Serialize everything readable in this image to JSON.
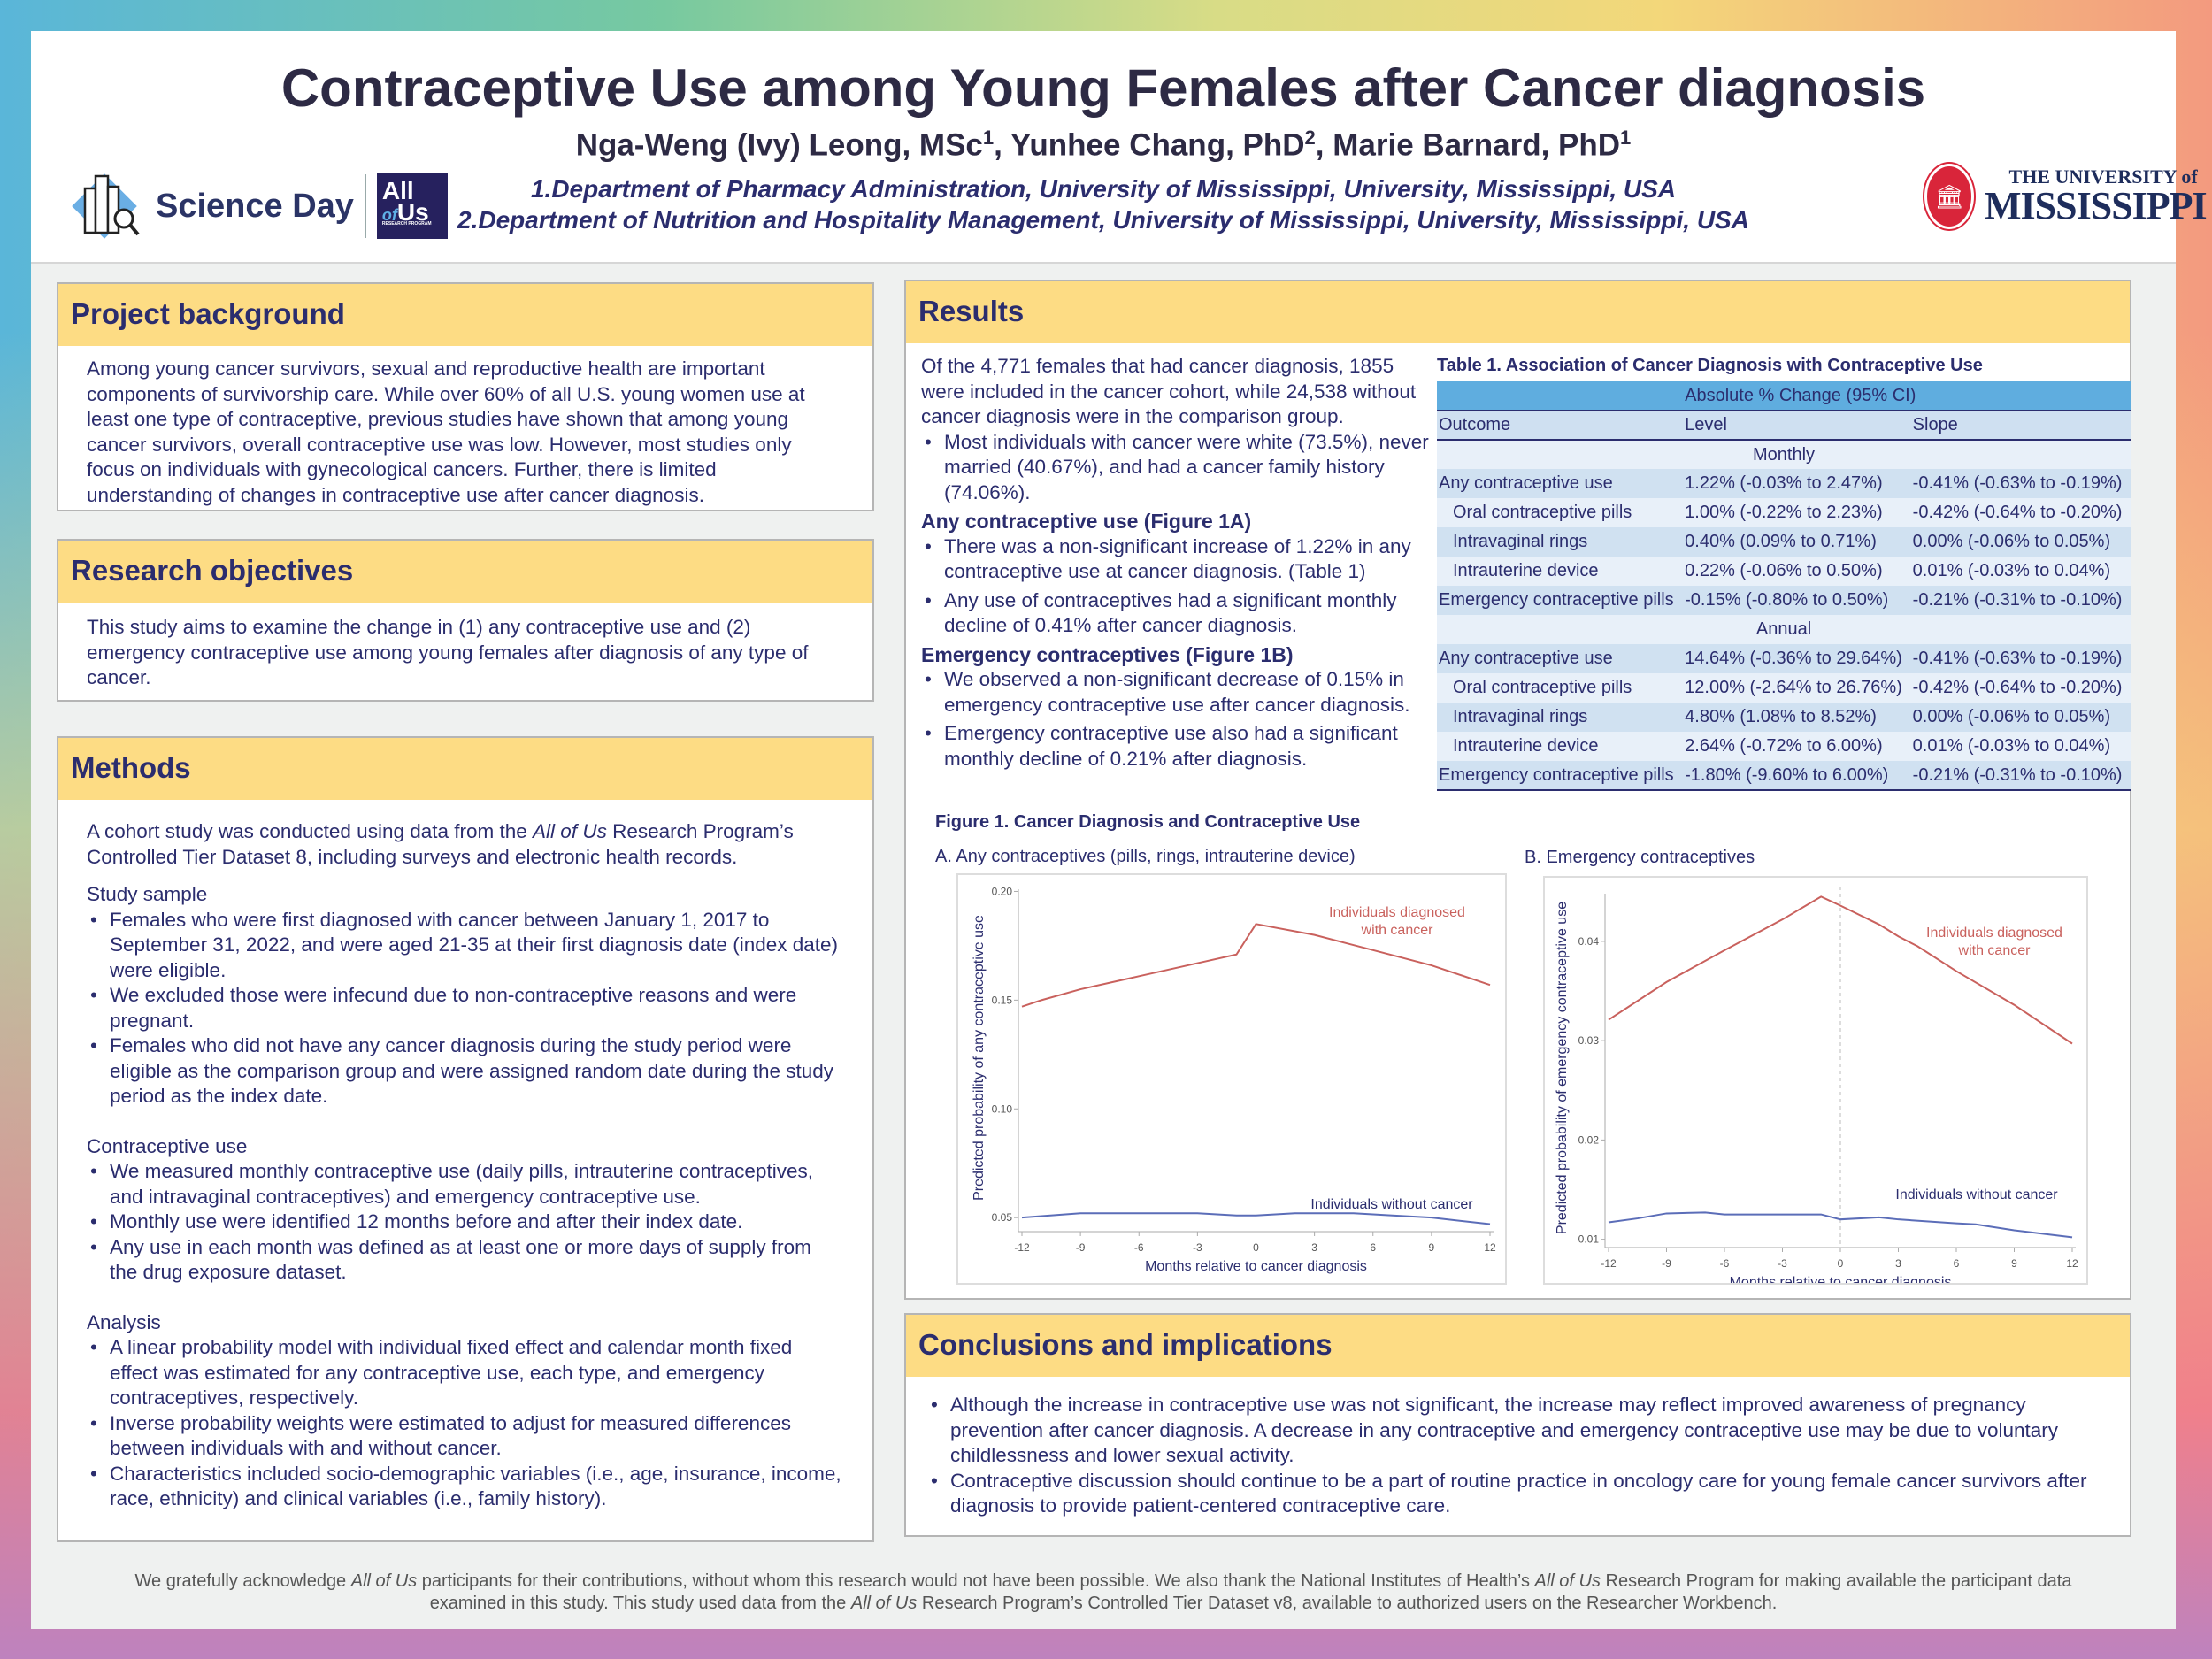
{
  "header": {
    "title": "Contraceptive Use among Young Females after Cancer diagnosis",
    "authors": [
      {
        "name": "Nga-Weng (Ivy) Leong, MSc",
        "sup": "1"
      },
      {
        "name": "Yunhee Chang, PhD",
        "sup": "2"
      },
      {
        "name": "Marie Barnard, PhD",
        "sup": "1"
      }
    ],
    "affiliations": [
      "1.Department of Pharmacy Administration, University of Mississippi, University, Mississippi, USA",
      "2.Department of Nutrition and Hospitality Management, University of Mississippi, University, Mississippi, USA"
    ],
    "logo_left": "Science Day",
    "logo_allofus": {
      "line1": "All",
      "line2a": "of",
      "line2b": "Us",
      "line3": "RESEARCH PROGRAM"
    },
    "logo_right": {
      "line1": "THE UNIVERSITY of",
      "line2": "MISSISSIPPI",
      "seal_year": "1848"
    }
  },
  "background": {
    "title": "Project background",
    "text": "Among young cancer survivors, sexual and reproductive health are important components of survivorship care. While over 60% of all U.S. young women use at least one type of contraceptive, previous studies have shown that among young cancer survivors, overall contraceptive use was low. However, most studies only focus on individuals with gynecological cancers. Further, there is limited understanding of changes in contraceptive use after cancer diagnosis."
  },
  "objectives": {
    "title": "Research objectives",
    "text": "This study aims to examine the change in (1) any contraceptive use and (2) emergency contraceptive use among young females after diagnosis of any type of cancer."
  },
  "methods": {
    "title": "Methods",
    "intro_pre": "A cohort study was conducted using data from the ",
    "intro_em": "All of Us",
    "intro_post": " Research Program’s Controlled Tier Dataset 8, including surveys and electronic health records.",
    "sections": [
      {
        "heading": "Study sample",
        "bullets": [
          "Females who were first diagnosed with cancer between January 1, 2017 to September 31, 2022, and were aged 21-35 at their first diagnosis date (index date) were eligible.",
          "We excluded those were infecund due to non-contraceptive reasons and were pregnant.",
          "Females who did not have any cancer diagnosis during the study period were eligible as the comparison group and were assigned random date during the study period as the index date."
        ]
      },
      {
        "heading": "Contraceptive use",
        "bullets": [
          "We measured monthly contraceptive use (daily pills, intrauterine contraceptives, and intravaginal contraceptives) and emergency contraceptive use.",
          "Monthly use were identified 12 months before and after their index date.",
          "Any use in each month was defined as at least one or more days of supply from the drug exposure dataset."
        ]
      },
      {
        "heading": "Analysis",
        "bullets": [
          "A linear probability model with individual fixed effect and calendar month fixed effect was estimated for any contraceptive use, each type, and emergency contraceptives, respectively.",
          "Inverse probability weights were estimated to adjust for measured differences between individuals with and without cancer.",
          "Characteristics included socio-demographic variables (i.e., age, insurance, income, race, ethnicity) and clinical variables (i.e., family history)."
        ]
      }
    ]
  },
  "results": {
    "title": "Results",
    "intro": "Of the 4,771 females that had cancer diagnosis, 1855 were included in the cancer cohort, while 24,538 without cancer diagnosis were in the comparison group.",
    "intro_bullet": "Most individuals with cancer were white (73.5%), never married (40.67%), and had a cancer family history (74.06%).",
    "any_heading": "Any contraceptive use (Figure 1A)",
    "any_bullets": [
      "There was a non-significant increase of 1.22% in any contraceptive use at cancer diagnosis. (Table 1)",
      "Any use of contraceptives had a significant monthly decline of 0.41% after cancer diagnosis."
    ],
    "ec_heading": "Emergency contraceptives (Figure 1B)",
    "ec_bullets": [
      "We observed a non-significant decrease of 0.15% in emergency contraceptive use after cancer diagnosis.",
      "Emergency contraceptive use also had a significant monthly decline of 0.21% after diagnosis."
    ],
    "table": {
      "caption": "Table 1. Association of Cancer Diagnosis with Contraceptive Use",
      "group_header": "Absolute % Change (95% CI)",
      "columns": [
        "Outcome",
        "Level",
        "Slope"
      ],
      "sections": [
        {
          "label": "Monthly",
          "rows": [
            [
              "Any contraceptive use",
              "1.22% (-0.03% to 2.47%)",
              "-0.41% (-0.63% to -0.19%)"
            ],
            [
              "Oral contraceptive pills",
              "1.00% (-0.22% to 2.23%)",
              "-0.42% (-0.64% to -0.20%)"
            ],
            [
              "Intravaginal rings",
              "0.40% (0.09% to 0.71%)",
              "0.00% (-0.06% to 0.05%)"
            ],
            [
              "Intrauterine device",
              "0.22% (-0.06% to 0.50%)",
              "0.01% (-0.03% to 0.04%)"
            ],
            [
              "Emergency contraceptive pills",
              "-0.15% (-0.80% to 0.50%)",
              "-0.21% (-0.31% to -0.10%)"
            ]
          ]
        },
        {
          "label": "Annual",
          "rows": [
            [
              "Any contraceptive use",
              "14.64% (-0.36% to 29.64%)",
              "-0.41% (-0.63% to -0.19%)"
            ],
            [
              "Oral contraceptive pills",
              "12.00% (-2.64% to 26.76%)",
              "-0.42% (-0.64% to -0.20%)"
            ],
            [
              "Intravaginal rings",
              "4.80% (1.08% to 8.52%)",
              "0.00% (-0.06% to 0.05%)"
            ],
            [
              "Intrauterine device",
              "2.64% (-0.72% to 6.00%)",
              "0.01% (-0.03% to 0.04%)"
            ],
            [
              "Emergency contraceptive pills",
              "-1.80% (-9.60% to 6.00%)",
              "-0.21% (-0.31% to -0.10%)"
            ]
          ]
        }
      ]
    },
    "figure_title": "Figure 1. Cancer Diagnosis and Contraceptive Use"
  },
  "chart_data": [
    {
      "type": "line",
      "subtitle": "A. Any contraceptives (pills, rings, intrauterine device)",
      "xlabel": "Months relative to cancer diagnosis",
      "ylabel": "Predicted probability of any contraceptive use",
      "xlim": [
        -12,
        12
      ],
      "ylim": [
        0.046,
        0.201
      ],
      "xticks": [
        -12,
        -9,
        -6,
        -3,
        0,
        3,
        6,
        9,
        12
      ],
      "yticks": [
        "0.05",
        "0.10",
        "0.15",
        "0.20"
      ],
      "reference_line_x": 0,
      "grid": false,
      "series": [
        {
          "name": "Individuals diagnosed with cancer",
          "color": "#c9615d",
          "x": [
            -12,
            -11,
            -9,
            -6,
            -3,
            -1,
            0,
            3,
            6,
            9,
            12
          ],
          "y": [
            0.147,
            0.15,
            0.155,
            0.161,
            0.167,
            0.171,
            0.185,
            0.18,
            0.173,
            0.166,
            0.157
          ]
        },
        {
          "name": "Individuals without cancer",
          "color": "#5b6db8",
          "x": [
            -12,
            -9,
            -7,
            -3,
            -1,
            0,
            2,
            5,
            7,
            9,
            12
          ],
          "y": [
            0.05,
            0.052,
            0.052,
            0.052,
            0.051,
            0.051,
            0.052,
            0.052,
            0.051,
            0.05,
            0.047
          ]
        }
      ]
    },
    {
      "type": "line",
      "subtitle": "B. Emergency contraceptives",
      "xlabel": "Months relative to cancer diagnosis",
      "ylabel": "Predicted probability of emergency contraceptive use",
      "xlim": [
        -12,
        12
      ],
      "ylim": [
        0.0097,
        0.0448
      ],
      "xticks": [
        -12,
        -9,
        -6,
        -3,
        0,
        3,
        6,
        9,
        12
      ],
      "yticks": [
        "0.01",
        "0.02",
        "0.03",
        "0.04"
      ],
      "reference_line_x": 0,
      "grid": false,
      "series": [
        {
          "name": "Individuals diagnosed with cancer",
          "color": "#c9615d",
          "x": [
            -12,
            -9,
            -6,
            -3,
            -1,
            0,
            2,
            3,
            4,
            6,
            9,
            12
          ],
          "y": [
            0.0321,
            0.0359,
            0.0391,
            0.0422,
            0.0445,
            0.0436,
            0.0417,
            0.0405,
            0.0395,
            0.037,
            0.0336,
            0.0297
          ]
        },
        {
          "name": "Individuals without cancer",
          "color": "#5b6db8",
          "x": [
            -12,
            -10.5,
            -9,
            -7,
            -6,
            -3,
            -1,
            0,
            2,
            3,
            6,
            7,
            9,
            12
          ],
          "y": [
            0.0117,
            0.0121,
            0.0126,
            0.0127,
            0.0125,
            0.0125,
            0.0125,
            0.012,
            0.0122,
            0.012,
            0.0116,
            0.0115,
            0.0109,
            0.0102
          ]
        }
      ]
    }
  ],
  "conclusions": {
    "title": "Conclusions and implications",
    "bullets": [
      "Although the increase in contraceptive use was not significant, the increase may reflect improved awareness of pregnancy prevention after cancer diagnosis. A decrease in any contraceptive and emergency contraceptive use may be due to voluntary childlessness and lower sexual activity.",
      "Contraceptive discussion should continue to be a part of routine practice in oncology care for young female cancer survivors after diagnosis to provide patient-centered contraceptive care."
    ]
  },
  "footer": {
    "p1": "We gratefully acknowledge ",
    "e1": "All of Us",
    "p2": " participants for their contributions, without whom this research would not have been possible. We also thank the National Institutes of Health’s ",
    "e2": "All of Us",
    "p3": " Research Program for making available the participant data examined in this study. This study used data from the ",
    "e3": "All of Us",
    "p4": " Research Program’s Controlled Tier Dataset v8, available to authorized users on the Researcher Workbench."
  }
}
